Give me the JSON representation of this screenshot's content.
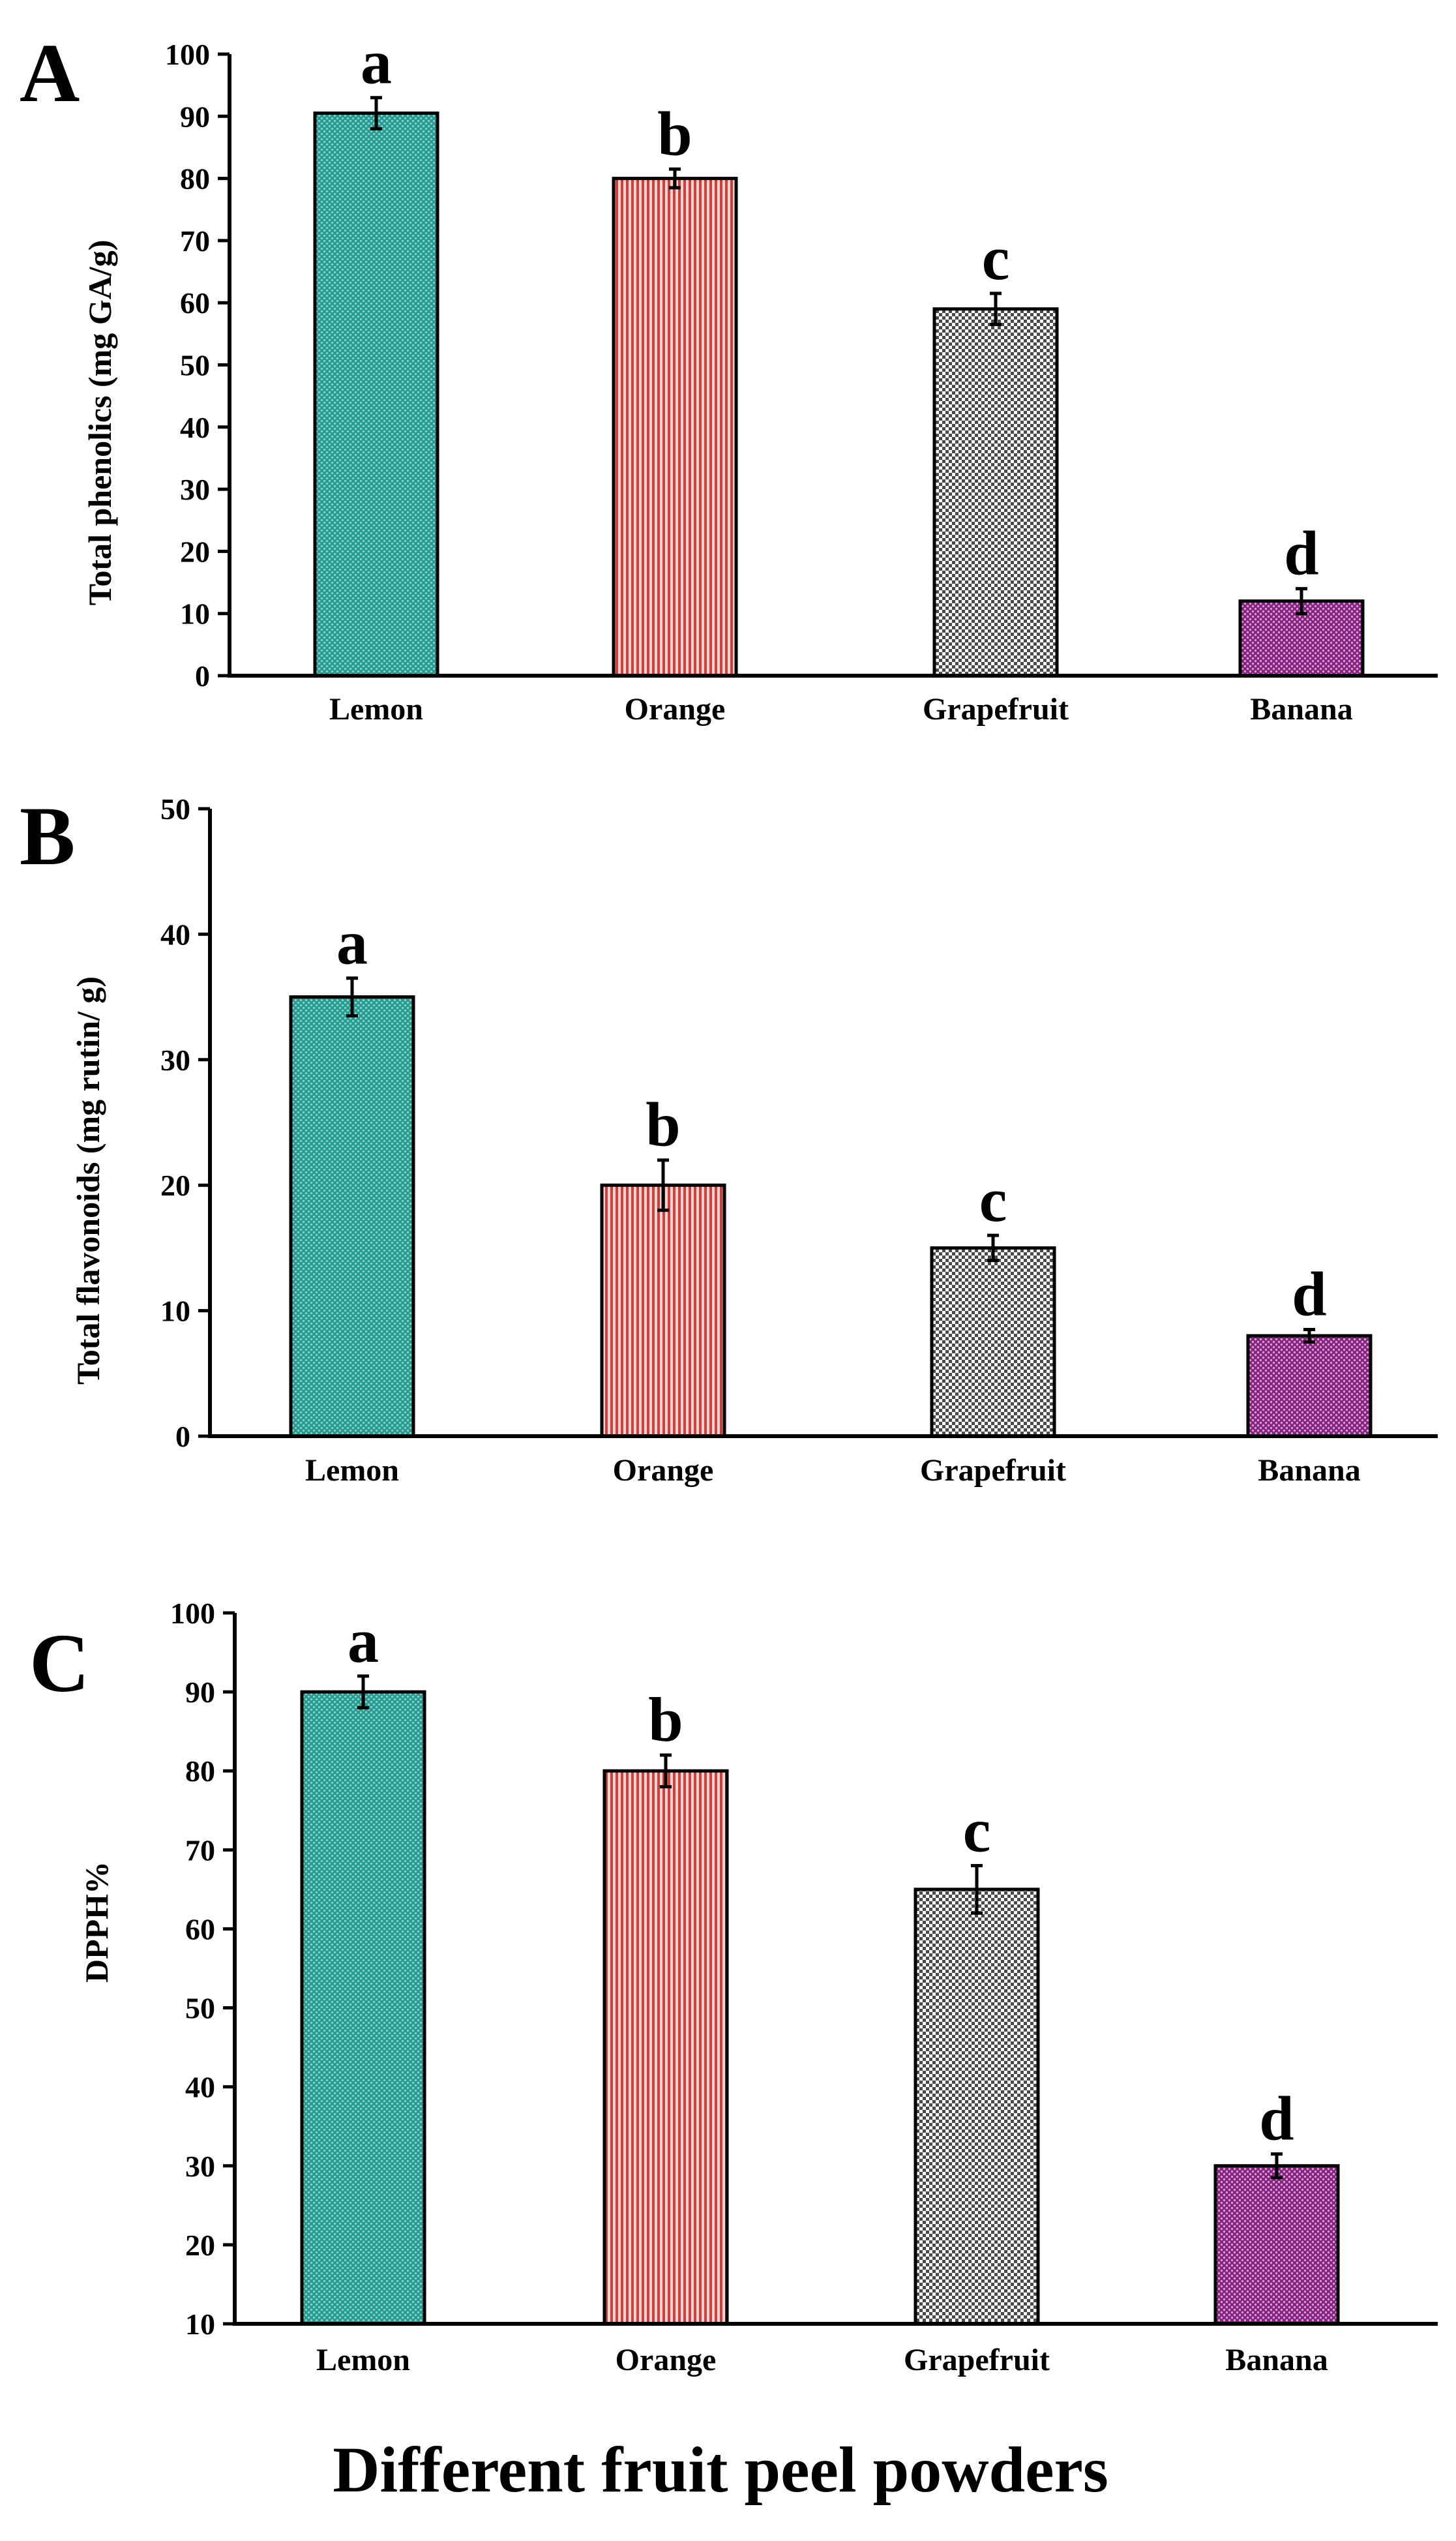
{
  "figure": {
    "xlabel": "Different fruit peel powders",
    "colors": {
      "Lemon": "#1f9e94",
      "Orange": "#e8a7a4",
      "Grapefruit": "#c8c8c8",
      "Banana": "#8f1f86"
    }
  },
  "chart_data": [
    {
      "panel": "A",
      "type": "bar",
      "title": "",
      "categories": [
        "Lemon",
        "Orange",
        "Grapefruit",
        "Banana"
      ],
      "values": [
        90.5,
        80,
        59,
        12
      ],
      "errors": [
        2.5,
        1.5,
        2.5,
        2
      ],
      "significance": [
        "a",
        "b",
        "c",
        "d"
      ],
      "ylabel": "Total  phenolics (mg GA/g)",
      "xlabel": "",
      "ylim": [
        0,
        100
      ],
      "yticks": [
        "0",
        "10",
        "20",
        "30",
        "40",
        "50",
        "60",
        "70",
        "80",
        "90",
        "100"
      ],
      "grid": false
    },
    {
      "panel": "B",
      "type": "bar",
      "title": "",
      "categories": [
        "Lemon",
        "Orange",
        "Grapefruit",
        "Banana"
      ],
      "values": [
        35,
        20,
        15,
        8
      ],
      "errors": [
        1.5,
        2,
        1,
        0.5
      ],
      "significance": [
        "a",
        "b",
        "c",
        "d"
      ],
      "ylabel": "Total flavonoids (mg rutin/ g)",
      "xlabel": "",
      "ylim": [
        0,
        50
      ],
      "yticks": [
        "0",
        "10",
        "20",
        "30",
        "40",
        "50"
      ],
      "grid": false
    },
    {
      "panel": "C",
      "type": "bar",
      "title": "",
      "categories": [
        "Lemon",
        "Orange",
        "Grapefruit",
        "Banana"
      ],
      "values": [
        90,
        80,
        65,
        30
      ],
      "errors": [
        2,
        2,
        3,
        1.5
      ],
      "significance": [
        "a",
        "b",
        "c",
        "d"
      ],
      "ylabel": "DPPH%",
      "xlabel": "Different fruit peel powders",
      "ylim": [
        10,
        100
      ],
      "yticks": [
        "10",
        "20",
        "30",
        "40",
        "50",
        "60",
        "70",
        "80",
        "90",
        "100"
      ],
      "grid": false
    }
  ]
}
